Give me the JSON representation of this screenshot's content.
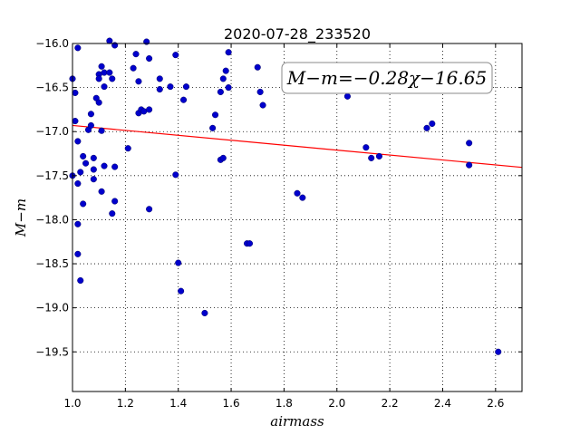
{
  "chart_data": {
    "type": "scatter",
    "title": "2020-07-28_233520",
    "xlabel": "airmass",
    "ylabel": "M−m",
    "xlim": [
      1.0,
      2.7
    ],
    "ylim": [
      -16.0,
      -19.95
    ],
    "y_inverted": true,
    "grid": true,
    "x_ticks": [
      1.0,
      1.2,
      1.4,
      1.6,
      1.8,
      2.0,
      2.2,
      2.4,
      2.6
    ],
    "x_tick_labels": [
      "1.0",
      "1.2",
      "1.4",
      "1.6",
      "1.8",
      "2.0",
      "2.2",
      "2.4",
      "2.6"
    ],
    "y_ticks": [
      -16.0,
      -16.5,
      -17.0,
      -17.5,
      -18.0,
      -18.5,
      -19.0,
      -19.5
    ],
    "y_tick_labels": [
      "−16.0",
      "−16.5",
      "−17.0",
      "−17.5",
      "−18.0",
      "−18.5",
      "−19.0",
      "−19.5"
    ],
    "annotation": "M−m=−0.28χ−16.65",
    "fit": {
      "slope": -0.28,
      "intercept": -16.65,
      "color": "#ff0000"
    },
    "marker_color": "#0000cc",
    "points": [
      {
        "x": 1.0,
        "y": -16.4
      },
      {
        "x": 1.02,
        "y": -16.05
      },
      {
        "x": 1.01,
        "y": -16.56
      },
      {
        "x": 1.01,
        "y": -16.88
      },
      {
        "x": 1.0,
        "y": -17.5
      },
      {
        "x": 1.02,
        "y": -17.11
      },
      {
        "x": 1.02,
        "y": -17.59
      },
      {
        "x": 1.03,
        "y": -17.46
      },
      {
        "x": 1.04,
        "y": -17.28
      },
      {
        "x": 1.05,
        "y": -17.36
      },
      {
        "x": 1.04,
        "y": -17.82
      },
      {
        "x": 1.02,
        "y": -18.05
      },
      {
        "x": 1.02,
        "y": -18.39
      },
      {
        "x": 1.03,
        "y": -18.69
      },
      {
        "x": 1.06,
        "y": -16.98
      },
      {
        "x": 1.07,
        "y": -16.93
      },
      {
        "x": 1.07,
        "y": -16.8
      },
      {
        "x": 1.08,
        "y": -17.3
      },
      {
        "x": 1.08,
        "y": -17.43
      },
      {
        "x": 1.08,
        "y": -17.54
      },
      {
        "x": 1.09,
        "y": -16.62
      },
      {
        "x": 1.1,
        "y": -16.67
      },
      {
        "x": 1.1,
        "y": -16.35
      },
      {
        "x": 1.1,
        "y": -16.4
      },
      {
        "x": 1.11,
        "y": -16.26
      },
      {
        "x": 1.12,
        "y": -16.33
      },
      {
        "x": 1.12,
        "y": -16.49
      },
      {
        "x": 1.11,
        "y": -16.99
      },
      {
        "x": 1.12,
        "y": -17.39
      },
      {
        "x": 1.11,
        "y": -17.68
      },
      {
        "x": 1.14,
        "y": -16.33
      },
      {
        "x": 1.15,
        "y": -16.4
      },
      {
        "x": 1.14,
        "y": -15.97
      },
      {
        "x": 1.16,
        "y": -16.02
      },
      {
        "x": 1.16,
        "y": -17.4
      },
      {
        "x": 1.16,
        "y": -17.79
      },
      {
        "x": 1.15,
        "y": -17.93
      },
      {
        "x": 1.21,
        "y": -17.19
      },
      {
        "x": 1.23,
        "y": -16.28
      },
      {
        "x": 1.24,
        "y": -16.12
      },
      {
        "x": 1.25,
        "y": -16.43
      },
      {
        "x": 1.25,
        "y": -16.79
      },
      {
        "x": 1.26,
        "y": -16.75
      },
      {
        "x": 1.27,
        "y": -16.77
      },
      {
        "x": 1.28,
        "y": -15.98
      },
      {
        "x": 1.29,
        "y": -16.17
      },
      {
        "x": 1.29,
        "y": -16.75
      },
      {
        "x": 1.29,
        "y": -17.88
      },
      {
        "x": 1.33,
        "y": -16.4
      },
      {
        "x": 1.33,
        "y": -16.52
      },
      {
        "x": 1.37,
        "y": -16.49
      },
      {
        "x": 1.39,
        "y": -16.13
      },
      {
        "x": 1.39,
        "y": -17.49
      },
      {
        "x": 1.4,
        "y": -18.49
      },
      {
        "x": 1.41,
        "y": -18.81
      },
      {
        "x": 1.42,
        "y": -16.64
      },
      {
        "x": 1.43,
        "y": -16.49
      },
      {
        "x": 1.5,
        "y": -19.06
      },
      {
        "x": 1.53,
        "y": -16.96
      },
      {
        "x": 1.54,
        "y": -16.81
      },
      {
        "x": 1.56,
        "y": -16.55
      },
      {
        "x": 1.56,
        "y": -17.32
      },
      {
        "x": 1.57,
        "y": -16.4
      },
      {
        "x": 1.58,
        "y": -16.31
      },
      {
        "x": 1.57,
        "y": -17.3
      },
      {
        "x": 1.59,
        "y": -16.1
      },
      {
        "x": 1.59,
        "y": -16.5
      },
      {
        "x": 1.66,
        "y": -18.27
      },
      {
        "x": 1.67,
        "y": -18.27
      },
      {
        "x": 1.7,
        "y": -16.27
      },
      {
        "x": 1.71,
        "y": -16.55
      },
      {
        "x": 1.72,
        "y": -16.7
      },
      {
        "x": 1.85,
        "y": -17.7
      },
      {
        "x": 1.87,
        "y": -17.75
      },
      {
        "x": 2.04,
        "y": -16.6
      },
      {
        "x": 2.11,
        "y": -17.18
      },
      {
        "x": 2.13,
        "y": -17.3
      },
      {
        "x": 2.16,
        "y": -17.28
      },
      {
        "x": 2.34,
        "y": -16.96
      },
      {
        "x": 2.36,
        "y": -16.91
      },
      {
        "x": 2.5,
        "y": -17.13
      },
      {
        "x": 2.5,
        "y": -17.38
      },
      {
        "x": 2.61,
        "y": -19.5
      }
    ]
  }
}
